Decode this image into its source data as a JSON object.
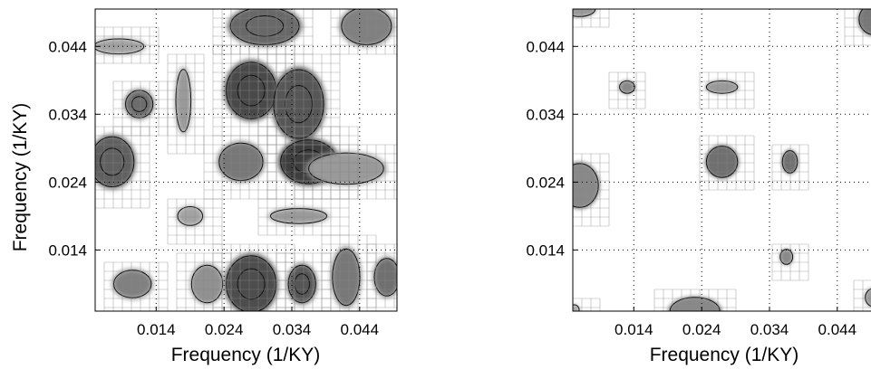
{
  "chart_data": [
    {
      "type": "heatmap",
      "title": "",
      "xlabel": "Frequency (1/KY)",
      "ylabel": "Frequency (1/KY)",
      "xlim": [
        0.005,
        0.0495
      ],
      "ylim": [
        0.005,
        0.0495
      ],
      "x_ticks": [
        0.014,
        0.024,
        0.034,
        0.044
      ],
      "y_ticks": [
        0.014,
        0.024,
        0.034,
        0.044
      ],
      "x_tick_labels": [
        "0.014",
        "0.024",
        "0.034",
        "0.044"
      ],
      "y_tick_labels": [
        "0.014",
        "0.024",
        "0.034",
        "0.044"
      ],
      "grid": true,
      "colormap": "grayscale",
      "regions": [
        {
          "x": 0.0115,
          "y": 0.0355,
          "rx": 0.0022,
          "ry": 0.0022,
          "level": 0.72
        },
        {
          "x": 0.028,
          "y": 0.0375,
          "rx": 0.004,
          "ry": 0.0045,
          "level": 0.92
        },
        {
          "x": 0.035,
          "y": 0.0355,
          "rx": 0.004,
          "ry": 0.0055,
          "level": 0.85
        },
        {
          "x": 0.0365,
          "y": 0.027,
          "rx": 0.0045,
          "ry": 0.0035,
          "level": 1.0
        },
        {
          "x": 0.0265,
          "y": 0.027,
          "rx": 0.0035,
          "ry": 0.003,
          "level": 0.65
        },
        {
          "x": 0.0075,
          "y": 0.027,
          "rx": 0.0035,
          "ry": 0.004,
          "level": 0.78
        },
        {
          "x": 0.018,
          "y": 0.036,
          "rx": 0.0012,
          "ry": 0.005,
          "level": 0.45
        },
        {
          "x": 0.03,
          "y": 0.047,
          "rx": 0.0055,
          "ry": 0.003,
          "level": 0.75
        },
        {
          "x": 0.045,
          "y": 0.047,
          "rx": 0.004,
          "ry": 0.003,
          "level": 0.6
        },
        {
          "x": 0.042,
          "y": 0.026,
          "rx": 0.006,
          "ry": 0.0025,
          "level": 0.45
        },
        {
          "x": 0.0085,
          "y": 0.044,
          "rx": 0.004,
          "ry": 0.0012,
          "level": 0.4
        },
        {
          "x": 0.035,
          "y": 0.019,
          "rx": 0.0045,
          "ry": 0.0012,
          "level": 0.45
        },
        {
          "x": 0.028,
          "y": 0.009,
          "rx": 0.004,
          "ry": 0.0045,
          "level": 0.9
        },
        {
          "x": 0.0355,
          "y": 0.009,
          "rx": 0.0022,
          "ry": 0.003,
          "level": 0.85
        },
        {
          "x": 0.0105,
          "y": 0.009,
          "rx": 0.003,
          "ry": 0.0022,
          "level": 0.6
        },
        {
          "x": 0.0215,
          "y": 0.009,
          "rx": 0.0025,
          "ry": 0.003,
          "level": 0.5
        },
        {
          "x": 0.042,
          "y": 0.01,
          "rx": 0.0022,
          "ry": 0.0045,
          "level": 0.65
        },
        {
          "x": 0.048,
          "y": 0.01,
          "rx": 0.002,
          "ry": 0.003,
          "level": 0.7
        },
        {
          "x": 0.019,
          "y": 0.019,
          "rx": 0.002,
          "ry": 0.0015,
          "level": 0.4
        }
      ]
    },
    {
      "type": "heatmap",
      "title": "",
      "xlabel": "Frequency (1/KY)",
      "ylabel": "",
      "xlim": [
        0.005,
        0.0495
      ],
      "ylim": [
        0.005,
        0.0495
      ],
      "x_ticks": [
        0.014,
        0.024,
        0.034,
        0.044
      ],
      "y_ticks": [
        0.014,
        0.024,
        0.034,
        0.044
      ],
      "x_tick_labels": [
        "0.014",
        "0.024",
        "0.034",
        "0.044"
      ],
      "y_tick_labels": [
        "0.014",
        "0.024",
        "0.034",
        "0.044"
      ],
      "grid": true,
      "colormap": "grayscale",
      "regions": [
        {
          "x": 0.013,
          "y": 0.038,
          "rx": 0.0012,
          "ry": 0.001,
          "level": 0.55
        },
        {
          "x": 0.027,
          "y": 0.038,
          "rx": 0.0025,
          "ry": 0.001,
          "level": 0.45
        },
        {
          "x": 0.027,
          "y": 0.027,
          "rx": 0.0025,
          "ry": 0.0025,
          "level": 0.7
        },
        {
          "x": 0.037,
          "y": 0.027,
          "rx": 0.0012,
          "ry": 0.0018,
          "level": 0.7
        },
        {
          "x": 0.0365,
          "y": 0.013,
          "rx": 0.001,
          "ry": 0.0012,
          "level": 0.55
        },
        {
          "x": 0.006,
          "y": 0.0235,
          "rx": 0.003,
          "ry": 0.0035,
          "level": 0.55
        },
        {
          "x": 0.023,
          "y": 0.005,
          "rx": 0.004,
          "ry": 0.0022,
          "level": 0.55
        },
        {
          "x": 0.006,
          "y": 0.0495,
          "rx": 0.0025,
          "ry": 0.0012,
          "level": 0.45
        },
        {
          "x": 0.0495,
          "y": 0.048,
          "rx": 0.0025,
          "ry": 0.0025,
          "level": 0.65
        },
        {
          "x": 0.0495,
          "y": 0.007,
          "rx": 0.0015,
          "ry": 0.0015,
          "level": 0.45
        },
        {
          "x": 0.0052,
          "y": 0.0052,
          "rx": 0.0008,
          "ry": 0.0008,
          "level": 0.35
        }
      ]
    }
  ]
}
